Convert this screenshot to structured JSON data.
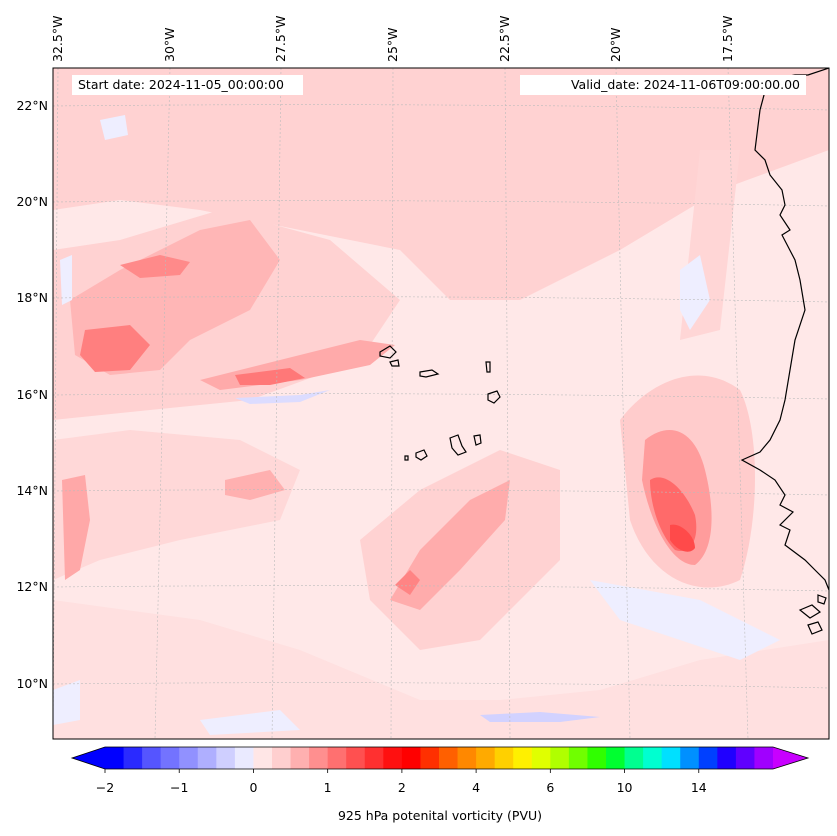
{
  "map": {
    "start_date": "Start date: 2024-11-05_00:00:00",
    "valid_date": "Valid_date: 2024-11-06T09:00:00.00",
    "lon_labels": [
      "32.5°W",
      "30°W",
      "27.5°W",
      "25°W",
      "22.5°W",
      "20°W",
      "17.5°W"
    ],
    "lat_labels": [
      "22°N",
      "20°N",
      "18°N",
      "16°N",
      "14°N",
      "12°N",
      "10°N"
    ],
    "variable_label": "925 hPa potenital vorticity (PVU)",
    "region": "Eastern tropical North Atlantic, Cape Verde islands and West African coast"
  },
  "colorbar": {
    "tick_labels": [
      "-2",
      "-1",
      "0",
      "1",
      "2",
      "4",
      "6",
      "10",
      "14"
    ],
    "colors": [
      "#0000ff",
      "#2a2aff",
      "#5555ff",
      "#7373ff",
      "#9191ff",
      "#afafff",
      "#cfcfff",
      "#eaeaff",
      "#ffe6e6",
      "#ffcfcf",
      "#ffb0b0",
      "#ff8f8f",
      "#ff7070",
      "#ff5050",
      "#ff3030",
      "#ff1010",
      "#ff0000",
      "#ff3000",
      "#ff6000",
      "#ff8800",
      "#ffaa00",
      "#ffd000",
      "#fff000",
      "#e0ff00",
      "#b0ff00",
      "#70ff00",
      "#30ff00",
      "#00ff30",
      "#00ff90",
      "#00ffd0",
      "#00e0ff",
      "#0090ff",
      "#0040ff",
      "#2000ff",
      "#6000ff",
      "#a000ff"
    ],
    "under_color": "#0000ff",
    "over_color": "#c800ff"
  }
}
